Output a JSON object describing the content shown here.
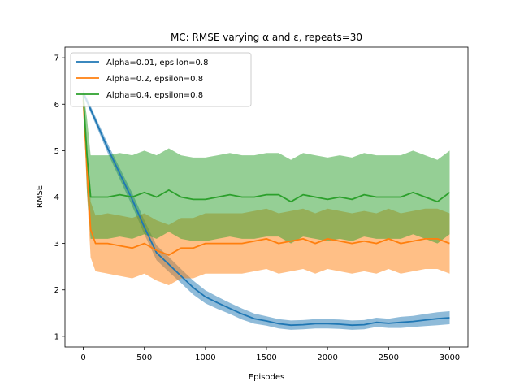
{
  "chart_data": {
    "type": "line",
    "title": "MC: RMSE varying α and ε, repeats=30",
    "xlabel": "Episodes",
    "ylabel": "RMSE",
    "xlim": [
      -150,
      3150
    ],
    "ylim": [
      0.77,
      7.23
    ],
    "xticks": [
      0,
      500,
      1000,
      1500,
      2000,
      2500,
      3000
    ],
    "yticks": [
      1,
      2,
      3,
      4,
      5,
      6,
      7
    ],
    "grid": false,
    "legend_position": "top-left",
    "band": "shaded region around each line",
    "series": [
      {
        "name": "Alpha=0.01, epsilon=0.8",
        "color": "#1f77b4",
        "x": [
          0,
          100,
          200,
          300,
          400,
          500,
          600,
          700,
          800,
          900,
          1000,
          1100,
          1200,
          1300,
          1400,
          1500,
          1600,
          1700,
          1800,
          1900,
          2000,
          2100,
          2200,
          2300,
          2400,
          2500,
          2600,
          2700,
          2800,
          2900,
          3000
        ],
        "mean": [
          6.25,
          5.65,
          5.05,
          4.5,
          3.95,
          3.35,
          2.8,
          2.55,
          2.3,
          2.05,
          1.85,
          1.72,
          1.6,
          1.48,
          1.38,
          1.33,
          1.27,
          1.24,
          1.25,
          1.27,
          1.27,
          1.26,
          1.24,
          1.25,
          1.3,
          1.28,
          1.3,
          1.32,
          1.35,
          1.38,
          1.4
        ],
        "band": [
          0.06,
          0.08,
          0.1,
          0.12,
          0.14,
          0.15,
          0.16,
          0.16,
          0.15,
          0.15,
          0.14,
          0.13,
          0.12,
          0.12,
          0.11,
          0.1,
          0.1,
          0.1,
          0.1,
          0.1,
          0.1,
          0.1,
          0.1,
          0.1,
          0.1,
          0.1,
          0.12,
          0.12,
          0.13,
          0.14,
          0.14
        ]
      },
      {
        "name": "Alpha=0.2, epsilon=0.8",
        "color": "#ff7f0e",
        "x": [
          0,
          30,
          60,
          100,
          200,
          300,
          400,
          500,
          600,
          700,
          800,
          900,
          1000,
          1100,
          1200,
          1300,
          1400,
          1500,
          1600,
          1700,
          1800,
          1900,
          2000,
          2100,
          2200,
          2300,
          2400,
          2500,
          2600,
          2700,
          2800,
          2900,
          3000
        ],
        "mean": [
          6.1,
          4.6,
          3.3,
          3.0,
          3.0,
          2.95,
          2.9,
          3.0,
          2.85,
          2.75,
          2.9,
          2.9,
          3.0,
          3.0,
          3.0,
          3.0,
          3.05,
          3.1,
          3.0,
          3.05,
          3.1,
          3.0,
          3.1,
          3.05,
          3.0,
          3.05,
          3.0,
          3.1,
          3.0,
          3.05,
          3.1,
          3.1,
          3.0
        ],
        "band": [
          0.1,
          0.5,
          0.6,
          0.6,
          0.65,
          0.65,
          0.65,
          0.65,
          0.65,
          0.65,
          0.65,
          0.65,
          0.65,
          0.65,
          0.65,
          0.65,
          0.65,
          0.65,
          0.65,
          0.65,
          0.65,
          0.65,
          0.65,
          0.65,
          0.65,
          0.65,
          0.65,
          0.65,
          0.65,
          0.65,
          0.65,
          0.65,
          0.65
        ]
      },
      {
        "name": "Alpha=0.4, epsilon=0.8",
        "color": "#2ca02c",
        "x": [
          0,
          30,
          60,
          100,
          200,
          300,
          400,
          500,
          600,
          700,
          800,
          900,
          1000,
          1100,
          1200,
          1300,
          1400,
          1500,
          1600,
          1700,
          1800,
          1900,
          2000,
          2100,
          2200,
          2300,
          2400,
          2500,
          2600,
          2700,
          2800,
          2900,
          3000
        ],
        "mean": [
          6.2,
          4.9,
          4.0,
          4.0,
          4.0,
          4.05,
          4.0,
          4.1,
          4.0,
          4.15,
          4.0,
          3.95,
          3.95,
          4.0,
          4.05,
          4.0,
          4.0,
          4.05,
          4.05,
          3.9,
          4.05,
          4.0,
          3.95,
          4.0,
          3.95,
          4.05,
          4.0,
          4.0,
          4.0,
          4.1,
          4.0,
          3.9,
          4.1
        ],
        "band": [
          0.1,
          0.8,
          0.9,
          0.9,
          0.9,
          0.9,
          0.9,
          0.9,
          0.9,
          0.9,
          0.9,
          0.9,
          0.9,
          0.9,
          0.9,
          0.9,
          0.9,
          0.9,
          0.9,
          0.9,
          0.9,
          0.9,
          0.9,
          0.9,
          0.9,
          0.9,
          0.9,
          0.9,
          0.9,
          0.9,
          0.9,
          0.9,
          0.9
        ]
      }
    ]
  }
}
